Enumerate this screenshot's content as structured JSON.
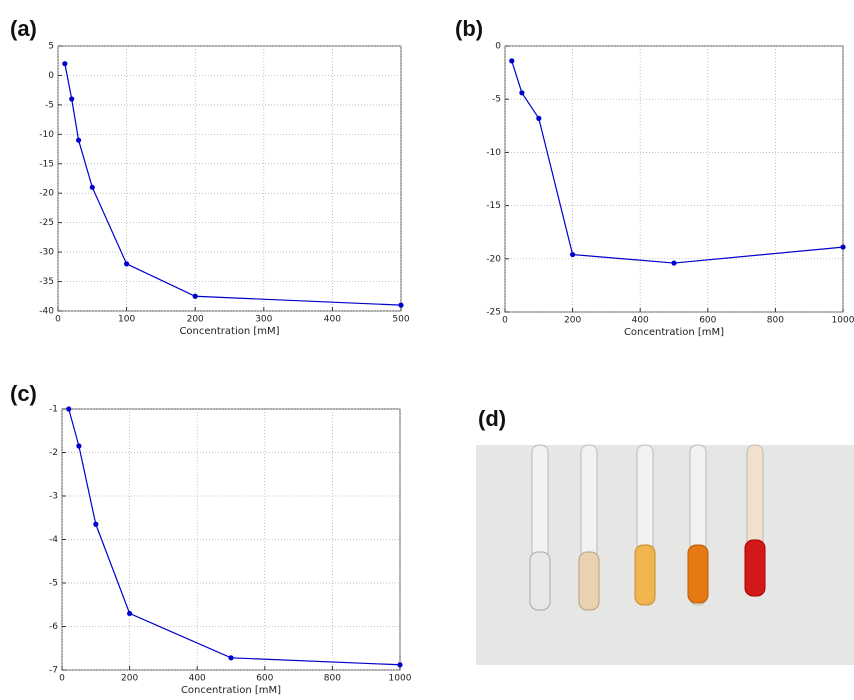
{
  "chart_data": [
    {
      "type": "line",
      "label": "(a)",
      "x_label": "Concentration [mM]",
      "x": [
        10,
        20,
        30,
        50,
        100,
        200,
        500
      ],
      "series": [
        {
          "color": "#0000cc",
          "values": [
            2,
            -4,
            -11,
            -19,
            -32,
            -37.5,
            -39
          ]
        }
      ],
      "xlim": [
        0,
        500
      ],
      "xticks": [
        0,
        100,
        200,
        300,
        400,
        500
      ],
      "ylim": [
        -40,
        5
      ],
      "yticks": [
        -40,
        -35,
        -30,
        -25,
        -20,
        -15,
        -10,
        -5,
        0,
        5
      ],
      "grid": true
    },
    {
      "type": "line",
      "label": "(b)",
      "x_label": "Concentration [mM]",
      "x": [
        20,
        50,
        100,
        200,
        500,
        1000
      ],
      "series": [
        {
          "color": "#0000cc",
          "values": [
            -1.4,
            -4.4,
            -6.8,
            -19.6,
            -20.4,
            -18.9
          ]
        }
      ],
      "xlim": [
        0,
        1000
      ],
      "xticks": [
        0,
        200,
        400,
        600,
        800,
        1000
      ],
      "ylim": [
        -25,
        0
      ],
      "yticks": [
        -25,
        -20,
        -15,
        -10,
        -5,
        0
      ],
      "grid": true
    },
    {
      "type": "line",
      "label": "(c)",
      "x_label": "Concentration [mM]",
      "x": [
        20,
        50,
        100,
        200,
        500,
        1000
      ],
      "series": [
        {
          "color": "#0000cc",
          "values": [
            -1,
            -1.85,
            -3.65,
            -5.7,
            -6.72,
            -6.88
          ]
        }
      ],
      "xlim": [
        0,
        1000
      ],
      "xticks": [
        0,
        200,
        400,
        600,
        800,
        1000
      ],
      "ylim": [
        -7,
        -1
      ],
      "yticks": [
        -7,
        -6,
        -5,
        -4,
        -3,
        -2,
        -1
      ],
      "grid": true
    }
  ],
  "photo": {
    "label": "(d)"
  }
}
